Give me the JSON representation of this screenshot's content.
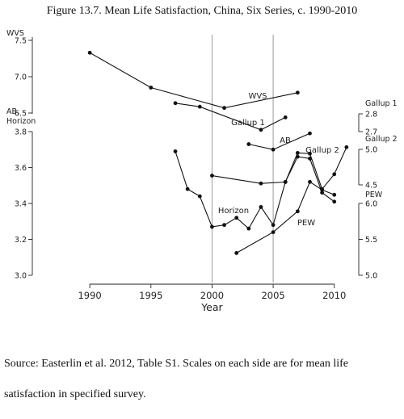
{
  "title": "Figure 13.7.  Mean Life Satisfaction, China, Six Series, c. 1990-2010",
  "source_note": "Source: Easterlin et al. 2012, Table S1.  Scales on each side are for mean life",
  "source_note_2": "satisfaction in specified survey.",
  "chart_data": {
    "type": "line",
    "xlabel": "Year",
    "xlim": [
      1985.3,
      2012
    ],
    "x_ticks": [
      1990,
      1995,
      2000,
      2005,
      2010
    ],
    "vertical_reference_lines": [
      2000,
      2005
    ],
    "left_axes": [
      {
        "label": "WVS",
        "ticks": [
          "7.5",
          "7.0",
          "6.5"
        ],
        "values": [
          7.5,
          7.0,
          6.5
        ]
      },
      {
        "label": "AB,\nHorizon",
        "ticks": [
          "3.8",
          "3.6",
          "3.4",
          "3.2",
          "3.0"
        ],
        "values": [
          3.8,
          3.6,
          3.4,
          3.2,
          3.0
        ]
      }
    ],
    "right_axes": [
      {
        "label": "Gallup 1",
        "ticks": [
          "2.8",
          "2.7"
        ],
        "values": [
          2.8,
          2.7
        ]
      },
      {
        "label": "Gallup 2",
        "ticks": [
          "5.0",
          "4.5"
        ],
        "values": [
          5.0,
          4.5
        ]
      },
      {
        "label": "PEW",
        "ticks": [
          "6.0",
          "5.5",
          "5.0"
        ],
        "values": [
          6.0,
          5.5,
          5.0
        ]
      }
    ],
    "series": [
      {
        "name": "WVS",
        "scale": "WVS",
        "points": [
          [
            1990,
            7.33
          ],
          [
            1995,
            6.85
          ],
          [
            2001,
            6.57
          ],
          [
            2007,
            6.78
          ]
        ]
      },
      {
        "name": "Gallup 1",
        "scale": "Gallup 1",
        "points": [
          [
            1997,
            2.86
          ],
          [
            1999,
            2.84
          ],
          [
            2004,
            2.71
          ],
          [
            2006,
            2.78
          ]
        ]
      },
      {
        "name": "AB",
        "scale": "AB, Horizon",
        "points": [
          [
            2003,
            3.73
          ],
          [
            2005,
            3.7
          ],
          [
            2008,
            3.79
          ]
        ]
      },
      {
        "name": "Gallup 2",
        "scale": "Gallup 2",
        "points": [
          [
            2000,
            4.63
          ],
          [
            2004,
            4.52
          ],
          [
            2006,
            4.54
          ],
          [
            2007,
            4.95
          ],
          [
            2008,
            4.94
          ],
          [
            2009,
            4.44
          ],
          [
            2010,
            4.65
          ],
          [
            2011,
            5.03
          ]
        ]
      },
      {
        "name": "Horizon",
        "scale": "AB, Horizon",
        "points": [
          [
            1997,
            3.69
          ],
          [
            1998,
            3.48
          ],
          [
            1999,
            3.44
          ],
          [
            2000,
            3.27
          ],
          [
            2001,
            3.28
          ],
          [
            2002,
            3.32
          ],
          [
            2003,
            3.26
          ],
          [
            2004,
            3.38
          ],
          [
            2005,
            3.28
          ],
          [
            2006,
            3.52
          ],
          [
            2007,
            3.66
          ],
          [
            2008,
            3.65
          ],
          [
            2009,
            3.46
          ],
          [
            2010,
            3.41
          ]
        ]
      },
      {
        "name": "PEW",
        "scale": "PEW",
        "points": [
          [
            2002,
            5.31
          ],
          [
            2005,
            5.6
          ],
          [
            2007,
            5.89
          ],
          [
            2008,
            6.3
          ],
          [
            2009,
            6.19
          ],
          [
            2010,
            6.12
          ]
        ]
      }
    ]
  }
}
